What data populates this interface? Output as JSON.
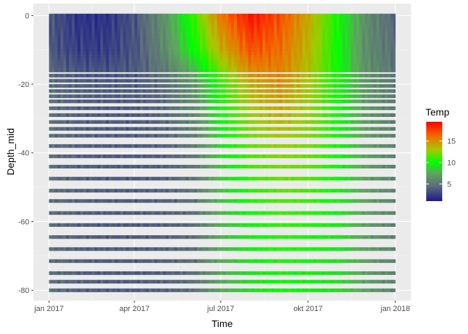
{
  "chart_data": {
    "type": "heatmap",
    "title": "",
    "xlabel": "Time",
    "ylabel": "Depth_mid",
    "x_range": [
      "2017-01-01",
      "2018-01-01"
    ],
    "y_range": [
      -83,
      3.5
    ],
    "x_ticks": [
      {
        "date": "2017-01-01",
        "label": "jan 2017"
      },
      {
        "date": "2017-04-01",
        "label": "apr 2017"
      },
      {
        "date": "2017-07-01",
        "label": "jul 2017"
      },
      {
        "date": "2017-10-01",
        "label": "okt 2017"
      },
      {
        "date": "2018-01-01",
        "label": "jan 2018"
      }
    ],
    "y_ticks": [
      {
        "value": 0,
        "label": "0"
      },
      {
        "value": -20,
        "label": "-20"
      },
      {
        "value": -40,
        "label": "-40"
      },
      {
        "value": -60,
        "label": "-60"
      },
      {
        "value": -80,
        "label": "-80"
      }
    ],
    "grid": true,
    "depths": [
      0,
      -0.5,
      -1,
      -1.5,
      -2,
      -2.5,
      -3,
      -3.5,
      -4,
      -4.5,
      -5,
      -5.5,
      -6,
      -6.5,
      -7,
      -7.5,
      -8,
      -8.5,
      -9,
      -10,
      -11,
      -12,
      -13,
      -14,
      -15,
      -16,
      -17.5,
      -19,
      -20.5,
      -22,
      -23.5,
      -25,
      -27,
      -29,
      -31,
      -33,
      -35,
      -38,
      -41,
      -44,
      -47.5,
      -51,
      -54,
      -57.5,
      -61,
      -64.5,
      -68,
      -71.5,
      -75,
      -77.5,
      -80
    ],
    "time_dates": [
      "2017-01-01",
      "2017-02-01",
      "2017-03-01",
      "2017-04-01",
      "2017-05-01",
      "2017-06-01",
      "2017-07-01",
      "2017-08-01",
      "2017-09-01",
      "2017-10-01",
      "2017-11-01",
      "2017-12-01",
      "2018-01-01"
    ],
    "temp_profile": {
      "note_free": true,
      "depth_levels": [
        0,
        -10,
        -20,
        -40,
        -60,
        -80
      ],
      "values": [
        [
          3.5,
          3.5,
          4.5,
          4.5,
          4.5,
          4.5
        ],
        [
          2.0,
          2.5,
          4.0,
          4.0,
          4.0,
          4.0
        ],
        [
          2.0,
          2.5,
          3.8,
          3.8,
          3.8,
          3.8
        ],
        [
          3.5,
          3.5,
          3.8,
          3.8,
          3.8,
          3.8
        ],
        [
          6.5,
          6.0,
          4.5,
          4.0,
          4.0,
          4.0
        ],
        [
          11.0,
          10.0,
          6.5,
          5.0,
          4.5,
          4.5
        ],
        [
          16.0,
          14.0,
          11.0,
          9.0,
          8.0,
          7.5
        ],
        [
          19.0,
          17.0,
          14.0,
          11.5,
          10.0,
          9.0
        ],
        [
          17.0,
          16.0,
          15.0,
          12.5,
          11.0,
          10.0
        ],
        [
          14.0,
          13.5,
          13.0,
          12.0,
          10.5,
          9.5
        ],
        [
          10.0,
          10.0,
          10.0,
          10.0,
          9.5,
          9.0
        ],
        [
          6.0,
          6.0,
          6.5,
          7.0,
          7.0,
          7.0
        ],
        [
          4.0,
          4.5,
          5.0,
          5.5,
          5.5,
          5.5
        ]
      ]
    },
    "legend": {
      "title": "Temp",
      "position": "right",
      "min": 1,
      "max": 19.5,
      "breaks": [
        {
          "value": 5,
          "label": "5"
        },
        {
          "value": 10,
          "label": "10"
        },
        {
          "value": 15,
          "label": "15"
        }
      ],
      "color_stops": [
        {
          "value": 1,
          "color": "#1a1a8c"
        },
        {
          "value": 4.5,
          "color": "#5e6e7a"
        },
        {
          "value": 7.5,
          "color": "#5ea65e"
        },
        {
          "value": 10,
          "color": "#00ff00"
        },
        {
          "value": 13,
          "color": "#a8c800"
        },
        {
          "value": 16,
          "color": "#f07000"
        },
        {
          "value": 19.5,
          "color": "#ff0000"
        }
      ]
    },
    "colors": {
      "panel_bg": "#ebebeb",
      "grid_major": "#ffffff",
      "grid_minor": "#f5f5f5",
      "tick_text": "#4d4d4d",
      "tick_mark": "#333333"
    }
  }
}
